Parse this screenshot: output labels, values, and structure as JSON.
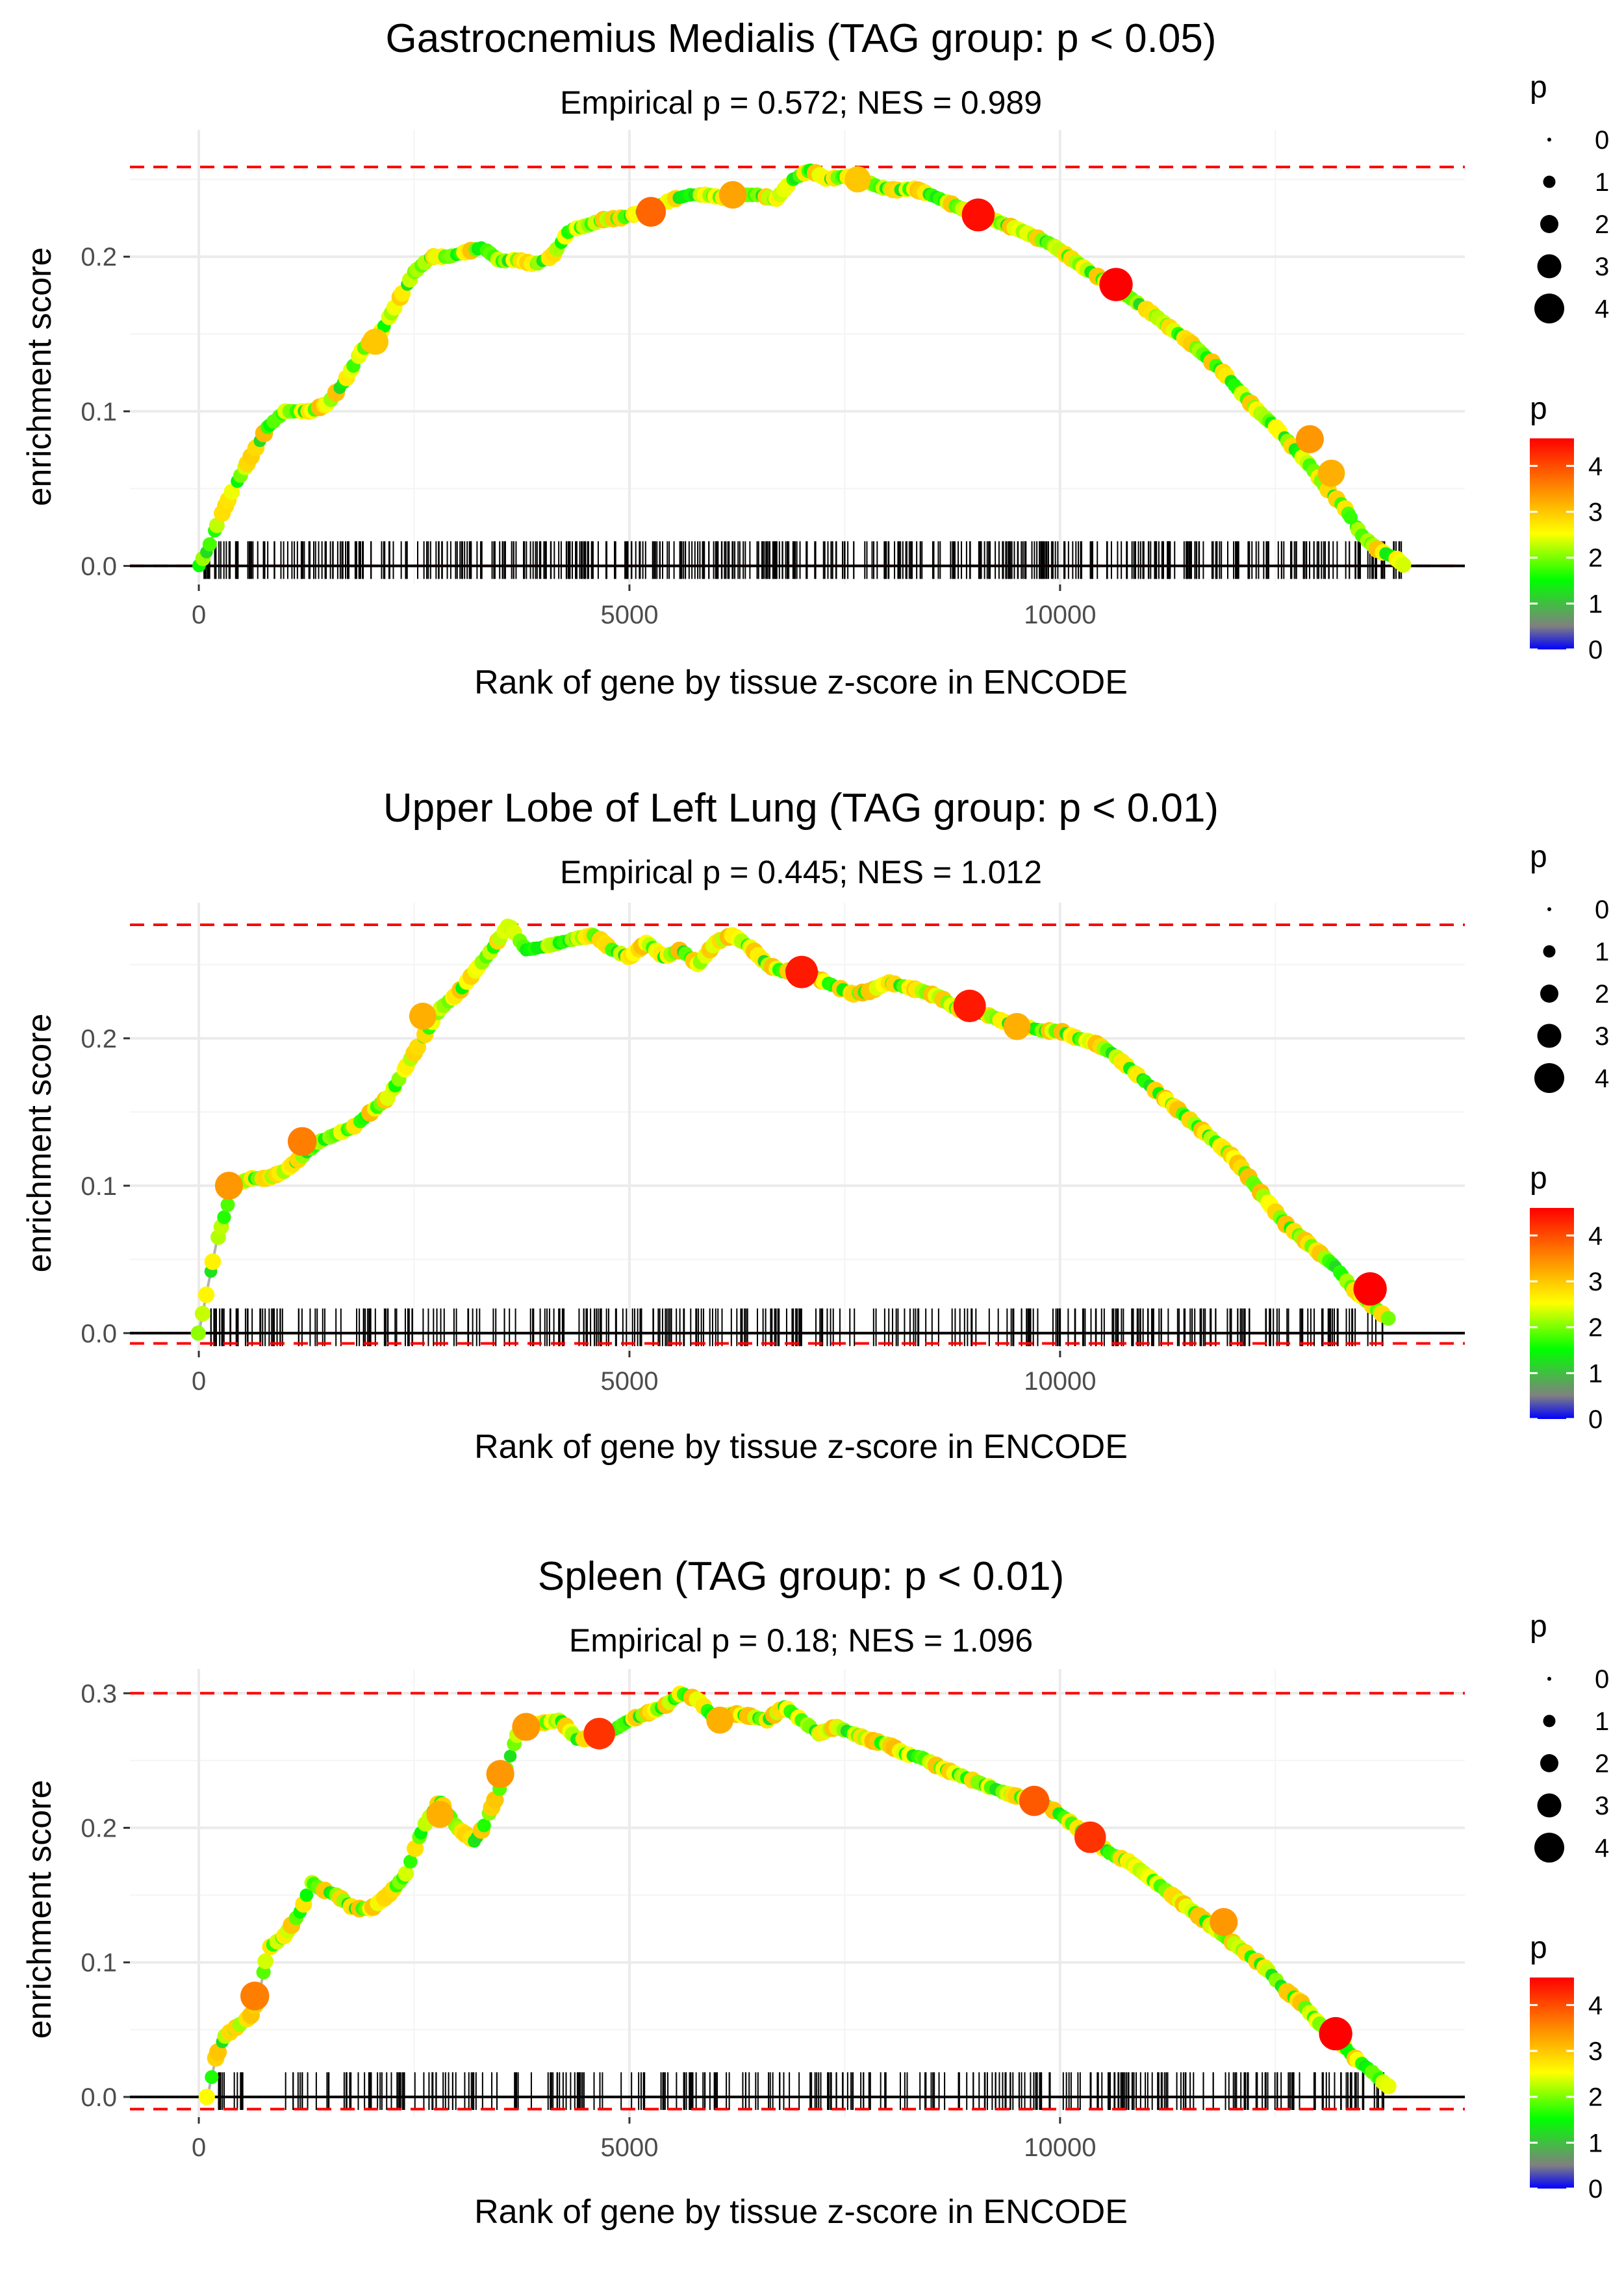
{
  "colors": {
    "background": "#ffffff",
    "grid": "#ebebeb",
    "curve": "#b3b3b3",
    "max_line": "#ff0000",
    "baseline": "#000000",
    "ticks": "#000000",
    "gradient": [
      "#0000ff",
      "#808080",
      "#00ff00",
      "#ffff00",
      "#ff8000",
      "#ff0000"
    ]
  },
  "chart_data": [
    {
      "type": "line",
      "title": "Gastrocnemius Medialis (TAG group: p < 0.05)",
      "subtitle": "Empirical p = 0.572; NES = 0.989",
      "xlabel": "Rank of gene by tissue z-score in ENCODE",
      "ylabel": "enrichment score",
      "xlim": [
        -800,
        14700
      ],
      "ylim": [
        -0.012,
        0.282
      ],
      "xticks": [
        0,
        5000,
        10000
      ],
      "xtick_labels": [
        "0",
        "5000",
        "10000"
      ],
      "yticks": [
        0.0,
        0.1,
        0.2
      ],
      "ytick_labels": [
        "0.0",
        "0.1",
        "0.2"
      ],
      "max_es": 0.258,
      "min_es": 0.0,
      "curve_x": [
        0,
        100,
        200,
        400,
        600,
        800,
        1000,
        1300,
        1500,
        1700,
        1900,
        2100,
        2300,
        2500,
        2700,
        2900,
        3100,
        3300,
        3500,
        3700,
        3900,
        4100,
        4300,
        4500,
        4700,
        4900,
        5100,
        5300,
        5500,
        5700,
        5900,
        6100,
        6300,
        6500,
        6700,
        6900,
        7100,
        7300,
        7500,
        7700,
        7900,
        8100,
        8300,
        8500,
        8700,
        8900,
        9100,
        9300,
        9500,
        9700,
        9900,
        10100,
        10300,
        10500,
        10700,
        10900,
        11100,
        11300,
        11500,
        11700,
        11900,
        12100,
        12300,
        12500,
        12700,
        12900,
        13100,
        13300,
        13500,
        13700,
        13900,
        14000
      ],
      "curve_y": [
        0.0,
        0.01,
        0.025,
        0.05,
        0.07,
        0.09,
        0.1,
        0.1,
        0.105,
        0.12,
        0.14,
        0.15,
        0.17,
        0.19,
        0.2,
        0.2,
        0.203,
        0.206,
        0.197,
        0.198,
        0.195,
        0.2,
        0.217,
        0.22,
        0.224,
        0.225,
        0.228,
        0.232,
        0.237,
        0.24,
        0.24,
        0.238,
        0.24,
        0.24,
        0.237,
        0.25,
        0.256,
        0.25,
        0.252,
        0.25,
        0.245,
        0.243,
        0.244,
        0.24,
        0.235,
        0.23,
        0.228,
        0.222,
        0.218,
        0.213,
        0.208,
        0.2,
        0.192,
        0.185,
        0.178,
        0.17,
        0.162,
        0.153,
        0.145,
        0.135,
        0.125,
        0.112,
        0.1,
        0.09,
        0.077,
        0.065,
        0.05,
        0.038,
        0.02,
        0.01,
        0.005,
        0.0
      ],
      "highlight_points": [
        {
          "x": 5250,
          "y": 0.229,
          "p": 3.8
        },
        {
          "x": 6200,
          "y": 0.24,
          "p": 3.3
        },
        {
          "x": 7650,
          "y": 0.25,
          "p": 3.0
        },
        {
          "x": 9050,
          "y": 0.227,
          "p": 4.5
        },
        {
          "x": 10650,
          "y": 0.182,
          "p": 4.6
        },
        {
          "x": 12900,
          "y": 0.082,
          "p": 3.4
        },
        {
          "x": 13150,
          "y": 0.06,
          "p": 3.2
        },
        {
          "x": 2050,
          "y": 0.145,
          "p": 3.0
        }
      ],
      "hit_ranks_dense": true,
      "hits": {
        "x_min": 0,
        "x_max": 14000,
        "count": 520
      }
    },
    {
      "type": "line",
      "title": "Upper Lobe of Left Lung (TAG group: p < 0.01)",
      "subtitle": "Empirical p = 0.445; NES = 1.012",
      "xlabel": "Rank of gene by tissue z-score in ENCODE",
      "ylabel": "enrichment score",
      "xlim": [
        -800,
        14700
      ],
      "ylim": [
        -0.012,
        0.292
      ],
      "xticks": [
        0,
        5000,
        10000
      ],
      "xtick_labels": [
        "0",
        "5000",
        "10000"
      ],
      "yticks": [
        0.0,
        0.1,
        0.2
      ],
      "ytick_labels": [
        "0.0",
        "0.1",
        "0.2"
      ],
      "max_es": 0.277,
      "min_es": -0.007,
      "curve_x": [
        0,
        100,
        200,
        300,
        400,
        600,
        800,
        1000,
        1200,
        1400,
        1600,
        1800,
        2000,
        2200,
        2400,
        2600,
        2800,
        3000,
        3200,
        3400,
        3600,
        3800,
        4000,
        4200,
        4400,
        4600,
        4800,
        5000,
        5200,
        5400,
        5600,
        5800,
        6000,
        6200,
        6400,
        6600,
        6800,
        7000,
        7200,
        7400,
        7600,
        7800,
        8000,
        8200,
        8400,
        8600,
        8800,
        9000,
        9200,
        9400,
        9600,
        9800,
        10000,
        10200,
        10400,
        10600,
        10800,
        11000,
        11200,
        11400,
        11600,
        11800,
        12000,
        12200,
        12400,
        12600,
        12800,
        13000,
        13200,
        13400,
        13600,
        13800
      ],
      "curve_y": [
        0.0,
        0.03,
        0.06,
        0.08,
        0.1,
        0.105,
        0.105,
        0.11,
        0.12,
        0.13,
        0.135,
        0.14,
        0.15,
        0.16,
        0.18,
        0.2,
        0.22,
        0.23,
        0.245,
        0.26,
        0.277,
        0.26,
        0.262,
        0.265,
        0.268,
        0.27,
        0.26,
        0.255,
        0.265,
        0.255,
        0.26,
        0.25,
        0.265,
        0.27,
        0.262,
        0.25,
        0.245,
        0.248,
        0.24,
        0.235,
        0.23,
        0.232,
        0.238,
        0.235,
        0.232,
        0.228,
        0.22,
        0.218,
        0.215,
        0.21,
        0.208,
        0.205,
        0.205,
        0.2,
        0.197,
        0.19,
        0.18,
        0.17,
        0.16,
        0.15,
        0.14,
        0.13,
        0.12,
        0.105,
        0.09,
        0.075,
        0.065,
        0.055,
        0.045,
        0.03,
        0.02,
        0.01
      ],
      "highlight_points": [
        {
          "x": 350,
          "y": 0.1,
          "p": 3.4
        },
        {
          "x": 1200,
          "y": 0.13,
          "p": 3.6
        },
        {
          "x": 2600,
          "y": 0.215,
          "p": 3.2
        },
        {
          "x": 7000,
          "y": 0.245,
          "p": 4.4
        },
        {
          "x": 8950,
          "y": 0.222,
          "p": 4.4
        },
        {
          "x": 9500,
          "y": 0.208,
          "p": 3.2
        },
        {
          "x": 13600,
          "y": 0.03,
          "p": 4.6
        }
      ],
      "hit_ranks_dense": false,
      "hits": {
        "x_min": 100,
        "x_max": 13800,
        "count": 330
      }
    },
    {
      "type": "line",
      "title": "Spleen (TAG group: p < 0.01)",
      "subtitle": "Empirical p = 0.18; NES = 1.096",
      "xlabel": "Rank of gene by tissue z-score in ENCODE",
      "ylabel": "enrichment score",
      "xlim": [
        -800,
        14700
      ],
      "ylim": [
        -0.015,
        0.318
      ],
      "xticks": [
        0,
        5000,
        10000
      ],
      "xtick_labels": [
        "0",
        "5000",
        "10000"
      ],
      "yticks": [
        0.0,
        0.1,
        0.2,
        0.3
      ],
      "ytick_labels": [
        "0.0",
        "0.1",
        "0.2",
        "0.3"
      ],
      "max_es": 0.3,
      "min_es": -0.009,
      "curve_x": [
        100,
        200,
        300,
        400,
        500,
        600,
        700,
        800,
        1000,
        1200,
        1300,
        1400,
        1600,
        1800,
        2000,
        2200,
        2400,
        2600,
        2800,
        3000,
        3200,
        3300,
        3500,
        3700,
        3800,
        4000,
        4200,
        4400,
        4600,
        4800,
        5000,
        5200,
        5400,
        5600,
        5800,
        6000,
        6200,
        6400,
        6600,
        6800,
        7000,
        7200,
        7400,
        7600,
        7800,
        8000,
        8200,
        8400,
        8600,
        8800,
        9000,
        9200,
        9400,
        9600,
        9800,
        10000,
        10200,
        10400,
        10600,
        10800,
        11000,
        11200,
        11400,
        11600,
        11800,
        12000,
        12200,
        12400,
        12600,
        12800,
        13000,
        13200,
        13400,
        13600,
        13800
      ],
      "curve_y": [
        0.0,
        0.03,
        0.045,
        0.05,
        0.055,
        0.06,
        0.075,
        0.11,
        0.12,
        0.14,
        0.16,
        0.155,
        0.15,
        0.14,
        0.14,
        0.15,
        0.165,
        0.2,
        0.22,
        0.2,
        0.19,
        0.2,
        0.23,
        0.27,
        0.276,
        0.278,
        0.28,
        0.265,
        0.268,
        0.272,
        0.28,
        0.285,
        0.29,
        0.3,
        0.295,
        0.28,
        0.285,
        0.283,
        0.28,
        0.29,
        0.28,
        0.27,
        0.275,
        0.27,
        0.265,
        0.262,
        0.255,
        0.252,
        0.245,
        0.24,
        0.235,
        0.23,
        0.225,
        0.222,
        0.218,
        0.21,
        0.2,
        0.19,
        0.18,
        0.175,
        0.165,
        0.155,
        0.145,
        0.135,
        0.125,
        0.115,
        0.105,
        0.095,
        0.08,
        0.07,
        0.055,
        0.045,
        0.03,
        0.02,
        0.008
      ],
      "highlight_points": [
        {
          "x": 650,
          "y": 0.075,
          "p": 3.6
        },
        {
          "x": 2800,
          "y": 0.21,
          "p": 3.2
        },
        {
          "x": 3500,
          "y": 0.24,
          "p": 3.4
        },
        {
          "x": 3800,
          "y": 0.275,
          "p": 3.4
        },
        {
          "x": 4650,
          "y": 0.27,
          "p": 4.2
        },
        {
          "x": 6050,
          "y": 0.28,
          "p": 3.2
        },
        {
          "x": 9700,
          "y": 0.22,
          "p": 3.9
        },
        {
          "x": 10350,
          "y": 0.193,
          "p": 4.2
        },
        {
          "x": 11900,
          "y": 0.13,
          "p": 3.4
        },
        {
          "x": 13200,
          "y": 0.047,
          "p": 4.6
        }
      ],
      "hit_ranks_dense": false,
      "hits": {
        "x_min": 150,
        "x_max": 13800,
        "count": 330
      }
    }
  ],
  "legends": [
    {
      "size_title": "p",
      "size_labels": [
        "0",
        "1",
        "2",
        "3",
        "4"
      ],
      "color_title": "p",
      "color_labels": [
        "4",
        "3",
        "2",
        "1",
        "0"
      ]
    },
    {
      "size_title": "p",
      "size_labels": [
        "0",
        "1",
        "2",
        "3",
        "4"
      ],
      "color_title": "p",
      "color_labels": [
        "4",
        "3",
        "2",
        "1",
        "0"
      ]
    },
    {
      "size_title": "p",
      "size_labels": [
        "0",
        "1",
        "2",
        "3",
        "4"
      ],
      "color_title": "p",
      "color_labels": [
        "4",
        "3",
        "2",
        "1",
        "0"
      ]
    }
  ]
}
